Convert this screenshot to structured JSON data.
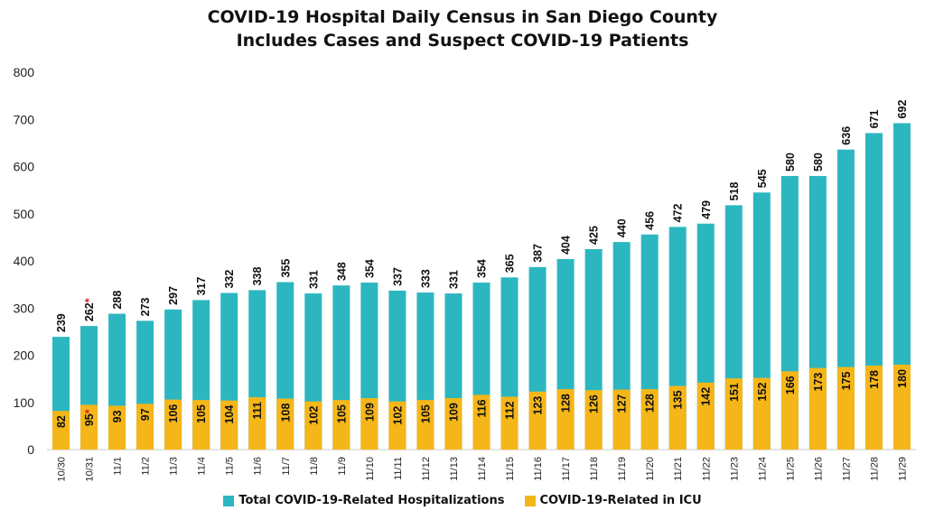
{
  "colors": {
    "total": "#2cb7c0",
    "icu": "#f5b619",
    "asterisk": "#e01e1e"
  },
  "chart_data": {
    "type": "bar",
    "title": [
      "COVID-19 Hospital Daily Census in San Diego County",
      "Includes Cases and Suspect COVID-19 Patients"
    ],
    "xlabel": "",
    "ylabel": "",
    "ylim": [
      0,
      800
    ],
    "yticks": [
      0,
      100,
      200,
      300,
      400,
      500,
      600,
      700,
      800
    ],
    "grid": false,
    "legend_position": "bottom",
    "categories": [
      "10/30",
      "10/31",
      "11/1",
      "11/2",
      "11/3",
      "11/4",
      "11/5",
      "11/6",
      "11/7",
      "11/8",
      "11/9",
      "11/10",
      "11/11",
      "11/12",
      "11/13",
      "11/14",
      "11/15",
      "11/16",
      "11/17",
      "11/18",
      "11/19",
      "11/20",
      "11/21",
      "11/22",
      "11/23",
      "11/24",
      "11/25",
      "11/26",
      "11/27",
      "11/28",
      "11/29"
    ],
    "series": [
      {
        "name": "Total COVID-19-Related Hospitalizations",
        "values": [
          239,
          262,
          288,
          273,
          297,
          317,
          332,
          338,
          355,
          331,
          348,
          354,
          337,
          333,
          331,
          354,
          365,
          387,
          404,
          425,
          440,
          456,
          472,
          479,
          518,
          545,
          580,
          580,
          636,
          671,
          692
        ]
      },
      {
        "name": "COVID-19-Related in ICU",
        "values": [
          82,
          95,
          93,
          97,
          106,
          105,
          104,
          111,
          108,
          102,
          105,
          109,
          102,
          105,
          109,
          116,
          112,
          123,
          128,
          126,
          127,
          128,
          135,
          142,
          151,
          152,
          166,
          173,
          175,
          178,
          180
        ]
      }
    ],
    "annotations": [
      {
        "category": "10/31",
        "mark": "*"
      }
    ]
  }
}
